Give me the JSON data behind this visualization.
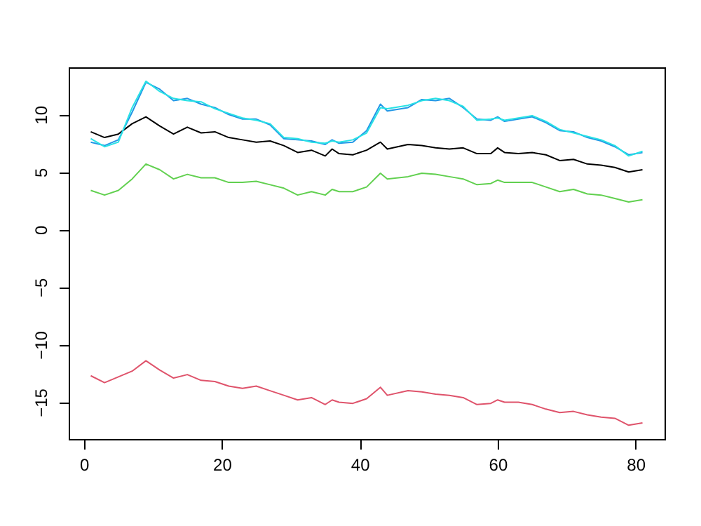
{
  "chart_data": {
    "type": "line",
    "x": [
      1,
      3,
      5,
      7,
      9,
      11,
      13,
      15,
      17,
      19,
      21,
      23,
      25,
      27,
      29,
      31,
      33,
      35,
      36,
      37,
      39,
      41,
      43,
      44,
      47,
      49,
      51,
      53,
      55,
      57,
      59,
      60,
      61,
      63,
      65,
      67,
      69,
      71,
      73,
      75,
      77,
      79,
      81
    ],
    "xlim": [
      -2.2,
      84.2
    ],
    "ylim": [
      -18.2,
      14.1
    ],
    "xticks": [
      0,
      20,
      40,
      60,
      80
    ],
    "yticks": [
      -15,
      -10,
      -5,
      0,
      5,
      10
    ],
    "series": [
      {
        "color": "#000000",
        "values": [
          8.5,
          8.0,
          8.3,
          9.2,
          9.8,
          9.0,
          8.3,
          8.9,
          8.4,
          8.5,
          8.0,
          7.8,
          7.6,
          7.7,
          7.3,
          6.7,
          6.9,
          6.4,
          7.0,
          6.6,
          6.5,
          6.9,
          7.6,
          7.0,
          7.4,
          7.3,
          7.1,
          7.0,
          7.1,
          6.6,
          6.6,
          7.1,
          6.7,
          6.6,
          6.7,
          6.5,
          6.0,
          6.1,
          5.7,
          5.6,
          5.4,
          5.0,
          5.2
        ]
      },
      {
        "color": "#df536b",
        "values": [
          -12.7,
          -13.3,
          -12.8,
          -12.3,
          -11.4,
          -12.2,
          -12.9,
          -12.6,
          -13.1,
          -13.2,
          -13.6,
          -13.8,
          -13.6,
          -14.0,
          -14.4,
          -14.8,
          -14.6,
          -15.2,
          -14.8,
          -15.0,
          -15.1,
          -14.7,
          -13.7,
          -14.4,
          -14.0,
          -14.1,
          -14.3,
          -14.4,
          -14.6,
          -15.2,
          -15.1,
          -14.8,
          -15.0,
          -15.0,
          -15.2,
          -15.6,
          -15.9,
          -15.8,
          -16.1,
          -16.3,
          -16.4,
          -17.0,
          -16.8
        ]
      },
      {
        "color": "#61d04f",
        "values": [
          3.4,
          3.0,
          3.4,
          4.4,
          5.7,
          5.2,
          4.4,
          4.8,
          4.5,
          4.5,
          4.1,
          4.1,
          4.2,
          3.9,
          3.6,
          3.0,
          3.3,
          3.0,
          3.5,
          3.3,
          3.3,
          3.7,
          4.9,
          4.4,
          4.6,
          4.9,
          4.8,
          4.6,
          4.4,
          3.9,
          4.0,
          4.3,
          4.1,
          4.1,
          4.1,
          3.7,
          3.3,
          3.5,
          3.1,
          3.0,
          2.7,
          2.4,
          2.6
        ]
      },
      {
        "color": "#2297e6",
        "values": [
          7.6,
          7.3,
          7.8,
          10.2,
          12.8,
          12.2,
          11.2,
          11.4,
          10.9,
          10.6,
          10.0,
          9.6,
          9.6,
          9.1,
          7.9,
          7.8,
          7.7,
          7.4,
          7.8,
          7.5,
          7.6,
          8.6,
          10.9,
          10.3,
          10.6,
          11.3,
          11.2,
          11.4,
          10.6,
          9.6,
          9.5,
          9.8,
          9.4,
          9.6,
          9.8,
          9.3,
          8.6,
          8.5,
          8.0,
          7.7,
          7.2,
          6.5,
          6.7
        ]
      },
      {
        "color": "#28e2e5",
        "values": [
          7.9,
          7.2,
          7.6,
          10.6,
          12.9,
          12.0,
          11.4,
          11.2,
          11.1,
          10.5,
          10.1,
          9.7,
          9.5,
          9.2,
          8.0,
          7.9,
          7.6,
          7.5,
          7.7,
          7.6,
          7.8,
          8.4,
          10.6,
          10.5,
          10.8,
          11.2,
          11.4,
          11.2,
          10.7,
          9.5,
          9.6,
          9.7,
          9.5,
          9.7,
          9.9,
          9.4,
          8.7,
          8.4,
          8.1,
          7.8,
          7.3,
          6.4,
          6.8
        ]
      }
    ],
    "line_style": "solid"
  }
}
